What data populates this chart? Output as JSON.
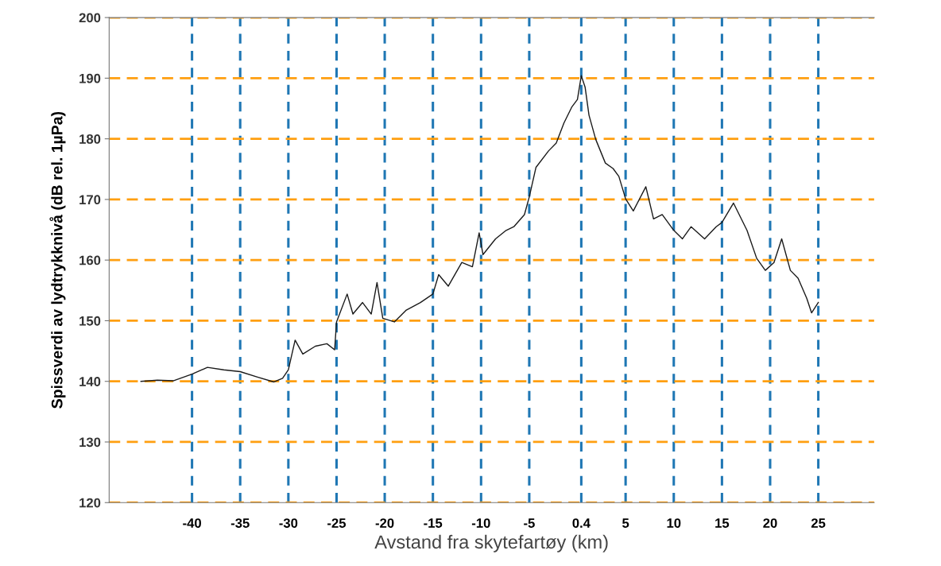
{
  "chart_data": {
    "type": "line",
    "xlabel": "Avstand fra skytefartøy (km)",
    "ylabel": "Spissverdi av lydtrykknivå (dB rel. 1µPa)",
    "xlim": [
      -48.6,
      30.8
    ],
    "xticks": [
      -40,
      -35,
      -30,
      -25,
      -20,
      -15,
      -10,
      -5,
      0.4,
      5,
      10,
      15,
      20,
      25
    ],
    "ylim": [
      120,
      200
    ],
    "yticks": [
      120,
      130,
      140,
      150,
      160,
      170,
      180,
      190,
      200
    ],
    "grid": true,
    "marker": "none",
    "line_style": "solid",
    "series": [
      {
        "color": "#1a1a1a",
        "x": [
          -45.3,
          -43.6,
          -41.9,
          -40,
          -38.4,
          -36.7,
          -35,
          -33.2,
          -31.5,
          -30.6,
          -30,
          -29.3,
          -28.5,
          -27.2,
          -26,
          -25.2,
          -25,
          -23.9,
          -23.3,
          -22.3,
          -21.4,
          -20.8,
          -20.2,
          -19.0,
          -17.8,
          -16.3,
          -15,
          -14.4,
          -13.4,
          -12.0,
          -10.9,
          -10.2,
          -9.8,
          -8.5,
          -7.4,
          -6.6,
          -5.5,
          -5,
          -4.3,
          -3.0,
          -2.2,
          -1.4,
          -0.6,
          0.0,
          0.4,
          0.8,
          1.2,
          1.9,
          2.9,
          3.7,
          4.3,
          5,
          5.8,
          7.1,
          7.9,
          8.8,
          10,
          10.9,
          11.8,
          13.2,
          14.4,
          15,
          16.2,
          17.6,
          18.6,
          19.5,
          20.4,
          21.2,
          22.1,
          22.9,
          23.8,
          24.3,
          25
        ],
        "values": [
          140.0,
          140.2,
          140.1,
          141.2,
          142.3,
          141.9,
          141.6,
          140.7,
          139.9,
          140.5,
          141.9,
          146.8,
          144.5,
          145.8,
          146.2,
          145.2,
          149.8,
          154.4,
          151.1,
          153.0,
          151.1,
          156.3,
          150.4,
          149.8,
          151.7,
          153.0,
          154.4,
          157.6,
          155.7,
          159.6,
          158.9,
          164.5,
          160.9,
          163.5,
          164.9,
          165.5,
          167.5,
          170.4,
          175.3,
          178.0,
          179.3,
          182.6,
          185.2,
          186.5,
          190.4,
          188.5,
          183.9,
          179.9,
          176.0,
          175.1,
          173.8,
          170.1,
          168.1,
          172.1,
          166.8,
          167.5,
          164.9,
          163.5,
          165.5,
          163.5,
          165.5,
          166.2,
          169.4,
          164.9,
          160.3,
          158.3,
          159.6,
          163.5,
          158.3,
          157.0,
          153.7,
          151.3,
          153.0
        ]
      }
    ]
  }
}
